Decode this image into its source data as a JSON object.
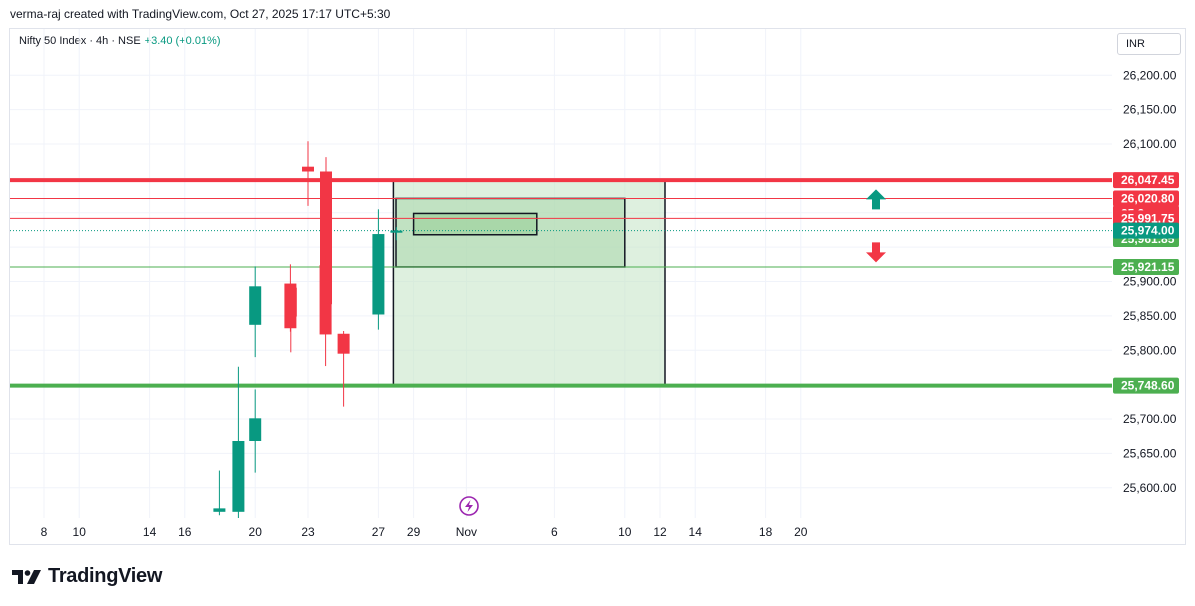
{
  "header": {
    "attribution": "verma-raj created with TradingView.com, Oct 27, 2025 17:17 UTC+5:30",
    "symbol": "Nifty 50 Index · 4h · NSE",
    "change": "+3.40 (+0.01%)",
    "currency": "INR"
  },
  "brand": {
    "name": "TradingView",
    "icon": "tradingview-logo-icon"
  },
  "colors": {
    "up": "#089981",
    "down": "#f23645",
    "support": "#4caf50",
    "resistance": "#f23645",
    "zone_fill": "#c8e6c9"
  },
  "chart_data": {
    "type": "candlestick",
    "y_ticks": [
      "26,200.00",
      "26,150.00",
      "26,100.00",
      "25,900.00",
      "25,850.00",
      "25,800.00",
      "25,700.00",
      "25,650.00",
      "25,600.00"
    ],
    "y_tick_values": [
      26200,
      26150,
      26100,
      25900,
      25850,
      25800,
      25700,
      25650,
      25600
    ],
    "x_ticks": [
      "8",
      "10",
      "14",
      "16",
      "20",
      "23",
      "27",
      "29",
      "Nov",
      "6",
      "10",
      "12",
      "14",
      "18",
      "20"
    ],
    "x_tick_dates": [
      "2025-10-08",
      "2025-10-10",
      "2025-10-14",
      "2025-10-16",
      "2025-10-20",
      "2025-10-23",
      "2025-10-27",
      "2025-10-29",
      "2025-11-01",
      "2025-11-06",
      "2025-11-10",
      "2025-11-12",
      "2025-11-14",
      "2025-11-18",
      "2025-11-20"
    ],
    "candles": [
      {
        "date": "2025-10-17",
        "o": 25565,
        "h": 25625,
        "l": 25560,
        "c": 25570
      },
      {
        "date": "2025-10-17",
        "o": 25565,
        "h": 25776,
        "l": 25555,
        "c": 25668
      },
      {
        "date": "2025-10-20",
        "o": 25668,
        "h": 25743,
        "l": 25622,
        "c": 25701
      },
      {
        "date": "2025-10-20",
        "o": 25837,
        "h": 25922,
        "l": 25790,
        "c": 25893
      },
      {
        "date": "2025-10-21",
        "o": 25891,
        "h": 25893,
        "l": 25797,
        "c": 25849
      },
      {
        "date": "2025-10-22",
        "o": 25897,
        "h": 25925,
        "l": 25827,
        "c": 25832
      },
      {
        "date": "2025-10-23",
        "o": 26067,
        "h": 26104,
        "l": 26010,
        "c": 26060
      },
      {
        "date": "2025-10-23",
        "o": 26060,
        "h": 26081,
        "l": 25862,
        "c": 25867
      },
      {
        "date": "2025-10-24",
        "o": 25924,
        "h": 25939,
        "l": 25777,
        "c": 25823
      },
      {
        "date": "2025-10-24",
        "o": 25824,
        "h": 25828,
        "l": 25718,
        "c": 25795
      },
      {
        "date": "2025-10-27",
        "o": 25852,
        "h": 26005,
        "l": 25830,
        "c": 25969
      },
      {
        "date": "2025-10-27",
        "o": 25971,
        "h": 25979,
        "l": 25960,
        "c": 25974
      }
    ],
    "levels": [
      {
        "label": "26,047.45",
        "value": 26047.45,
        "color": "#f23645",
        "style": "thick"
      },
      {
        "label": "26,020.80",
        "value": 26020.8,
        "color": "#f23645",
        "style": "thin"
      },
      {
        "label": "25,991.75",
        "value": 25991.75,
        "color": "#f23645",
        "style": "thin"
      },
      {
        "label": "25,974.00",
        "value": 25974.0,
        "color": "#089981",
        "style": "dotted"
      },
      {
        "label": "25,921.15",
        "value": 25921.15,
        "color": "#4caf50",
        "style": "thin"
      },
      {
        "label": "25,748.60",
        "value": 25748.6,
        "color": "#4caf50",
        "style": "thick"
      }
    ],
    "partially_hidden_labels": [
      "25,9~~.~~",
      "25,961.85"
    ],
    "hidden_label_values": [
      25999,
      25961.85
    ],
    "zones": [
      {
        "name": "outer-zone",
        "x_start": "2025-10-27",
        "x_end": "2025-11-12",
        "y_top": 26047.45,
        "y_bottom": 25748.6
      },
      {
        "name": "middle-zone",
        "x_start": "2025-10-28",
        "x_end": "2025-11-10",
        "y_top": 26020.8,
        "y_bottom": 25921.15
      },
      {
        "name": "inner-zone",
        "x_start": "2025-10-29",
        "x_end": "2025-11-05",
        "y_top": 25999,
        "y_bottom": 25968
      }
    ],
    "arrows": [
      {
        "direction": "up",
        "color": "#089981"
      },
      {
        "direction": "down",
        "color": "#f23645"
      }
    ],
    "event_icon": "lightning-icon"
  }
}
